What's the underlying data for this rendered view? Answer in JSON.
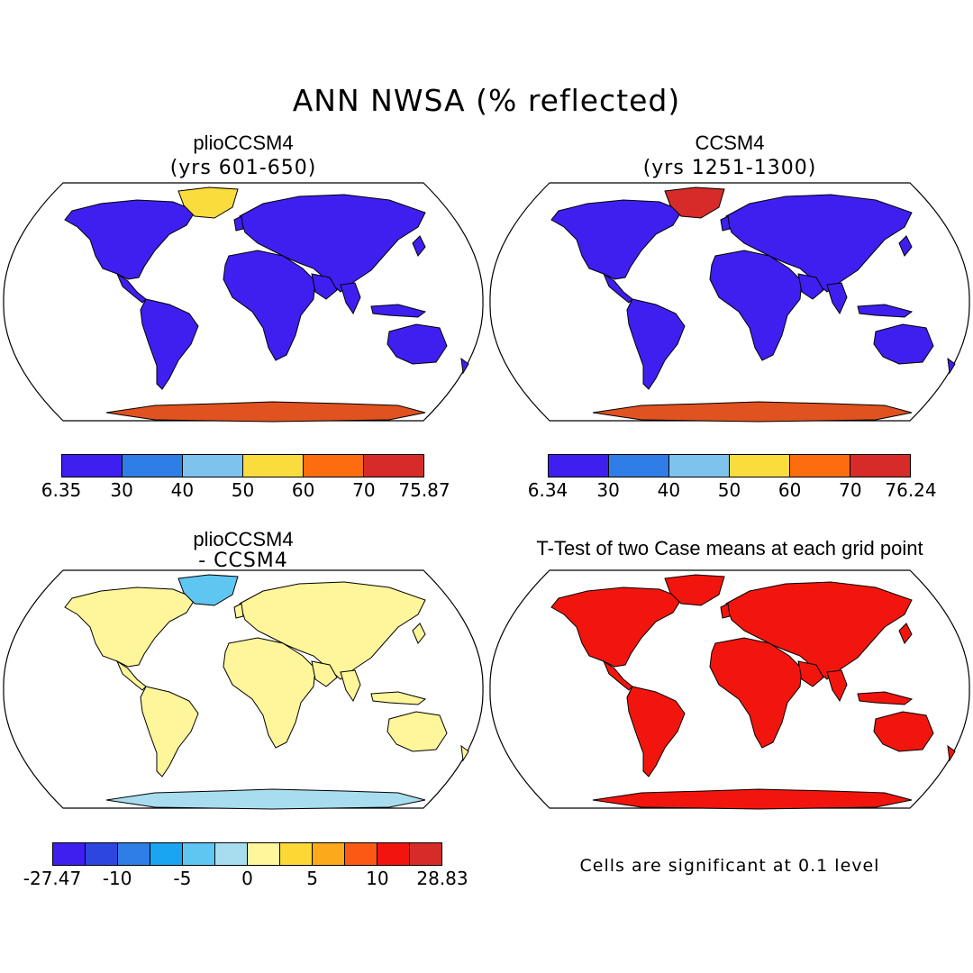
{
  "title": "ANN NWSA (% reflected)",
  "panels": {
    "top_left": {
      "title": "plioCCSM4",
      "subtitle": "(yrs 601-650)"
    },
    "top_right": {
      "title": "CCSM4",
      "subtitle": "(yrs 1251-1300)"
    },
    "bottom_left": {
      "title": "plioCCSM4",
      "subtitle": "- CCSM4"
    },
    "bottom_right": {
      "title": "T-Test of two Case means at each grid point",
      "note": "Cells are significant at 0.1 level"
    }
  },
  "colorbars": {
    "top_left": {
      "colors": [
        "#3f1ff0",
        "#2f7de6",
        "#7ec3ee",
        "#fbdc3d",
        "#fd6d10",
        "#d62b28"
      ],
      "labels": [
        "6.35",
        "30",
        "40",
        "50",
        "60",
        "70",
        "75.87"
      ]
    },
    "top_right": {
      "colors": [
        "#3f1ff0",
        "#2f7de6",
        "#7ec3ee",
        "#fbdc3d",
        "#fd6d10",
        "#d62b28"
      ],
      "labels": [
        "6.34",
        "30",
        "40",
        "50",
        "60",
        "70",
        "76.24"
      ]
    },
    "bottom_left": {
      "colors": [
        "#3f1ff0",
        "#2e46e0",
        "#2f7de6",
        "#1aa5f0",
        "#5fc6f2",
        "#a8ddf0",
        "#fff59a",
        "#fdd835",
        "#fca91c",
        "#fc5a14",
        "#f2150e",
        "#d62b28"
      ],
      "labels": [
        "-27.47",
        "-10",
        "-5",
        "0",
        "5",
        "10",
        "28.83"
      ]
    }
  },
  "maps": {
    "top_left": {
      "land": "#3f1ff0",
      "antarctica": "#e0521f",
      "greenland": "#fbdc3d"
    },
    "top_right": {
      "land": "#3f1ff0",
      "antarctica": "#e0521f",
      "greenland": "#d62b28"
    },
    "bottom_left": {
      "land": "#fff59a",
      "antarctica": "#a8ddf0",
      "greenland": "#5fc6f2"
    },
    "bottom_right": {
      "land": "#f2150e",
      "antarctica": "#f2150e",
      "greenland": "#f2150e"
    }
  }
}
